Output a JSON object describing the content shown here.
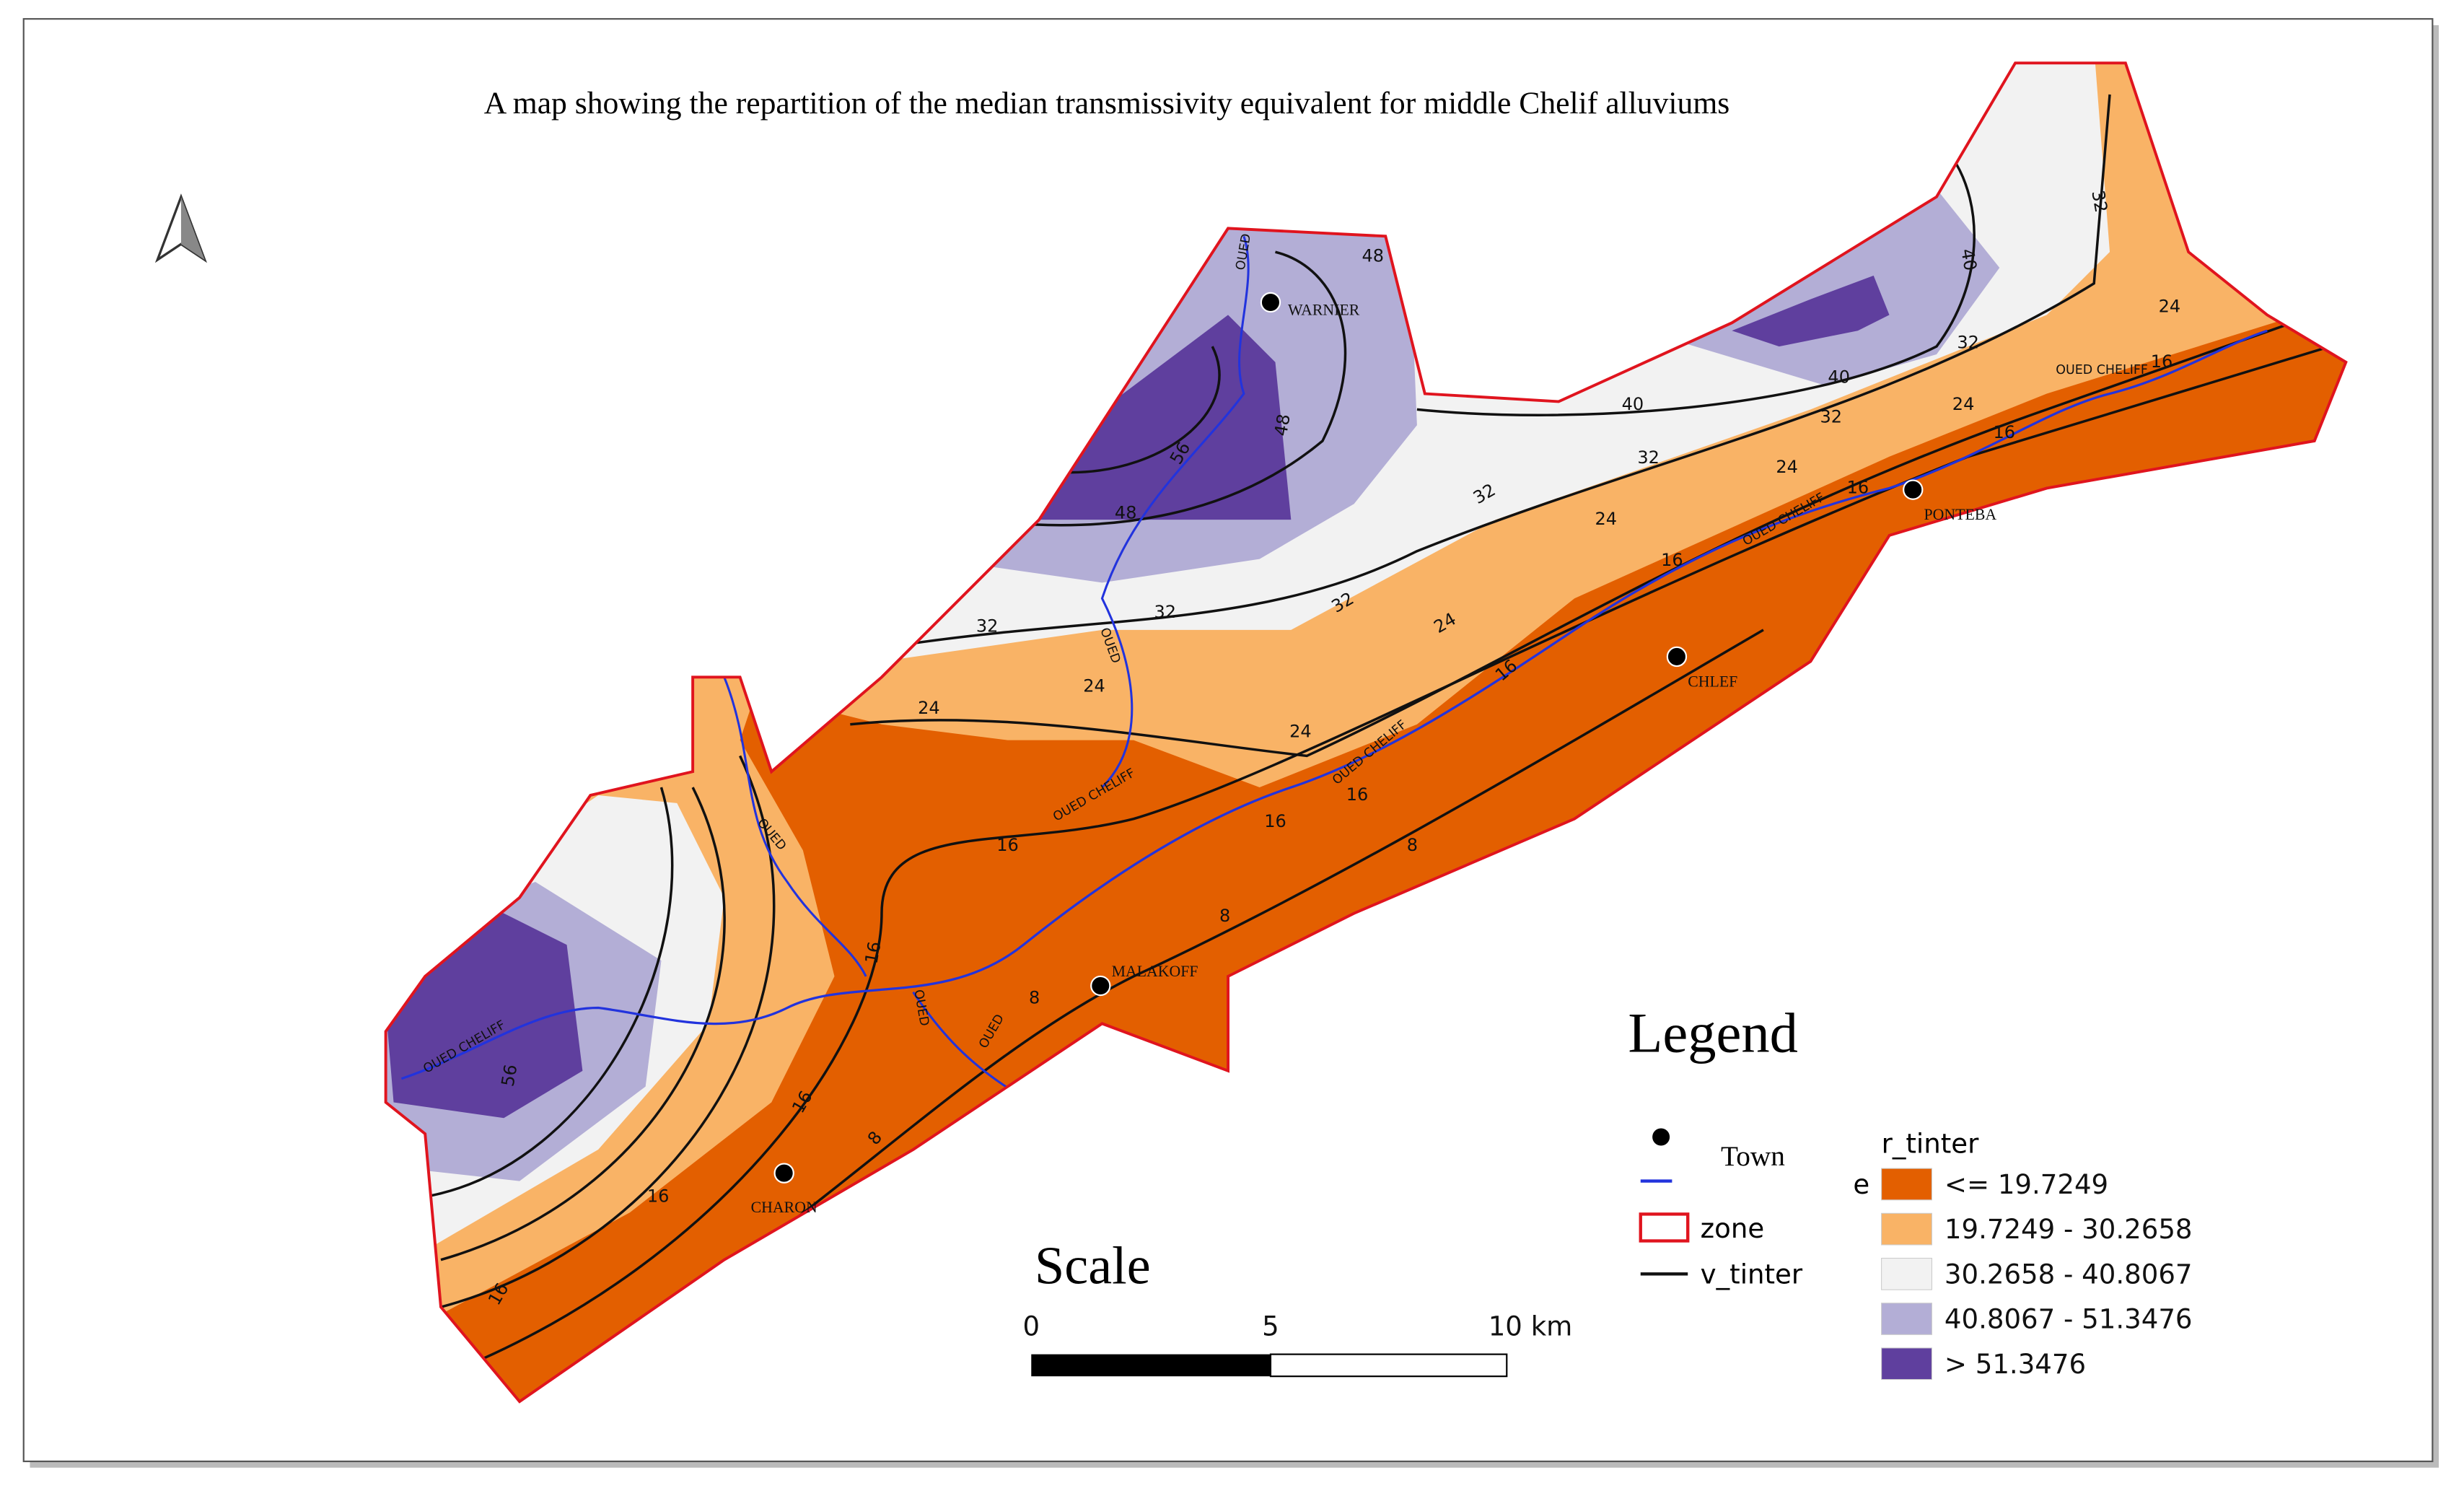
{
  "title": "A map showing the repartition of the median transmissivity equivalent for middle Chelif alluviums",
  "towns": [
    "WARNIER",
    "PONTEBA",
    "CHLEF",
    "MALAKOFF",
    "CHARON"
  ],
  "contour_labels": [
    48,
    56,
    48,
    48,
    40,
    40,
    40,
    32,
    32,
    32,
    32,
    32,
    32,
    32,
    32,
    24,
    24,
    24,
    24,
    24,
    24,
    24,
    24,
    16,
    16,
    16,
    16,
    16,
    16,
    16,
    16,
    16,
    16,
    16,
    16,
    8,
    8,
    8,
    8,
    56
  ],
  "river_labels": [
    "OUED CHELIFF",
    "OUED CHELIFF",
    "OUED CHELIFF",
    "OUED CHELIFF",
    "OUED CHELIFF",
    "OUED",
    "OUED",
    "OUED",
    "OUED",
    "OUED"
  ],
  "legend": {
    "title": "Legend",
    "items": [
      "Town",
      "zone",
      "v_tinter"
    ],
    "raster_title": "r_tinter",
    "stray": "e",
    "classes": [
      {
        "label": "<= 19.7249",
        "color": "#e35f00"
      },
      {
        "label": "19.7249 - 30.2658",
        "color": "#f9b366"
      },
      {
        "label": "30.2658 - 40.8067",
        "color": "#f2f2f2"
      },
      {
        "label": "40.8067 - 51.3476",
        "color": "#b3aed6"
      },
      {
        "label": "> 51.3476",
        "color": "#5f3f9e"
      }
    ]
  },
  "scale": {
    "title": "Scale",
    "ticks": [
      "0",
      "5",
      "10 km"
    ]
  }
}
